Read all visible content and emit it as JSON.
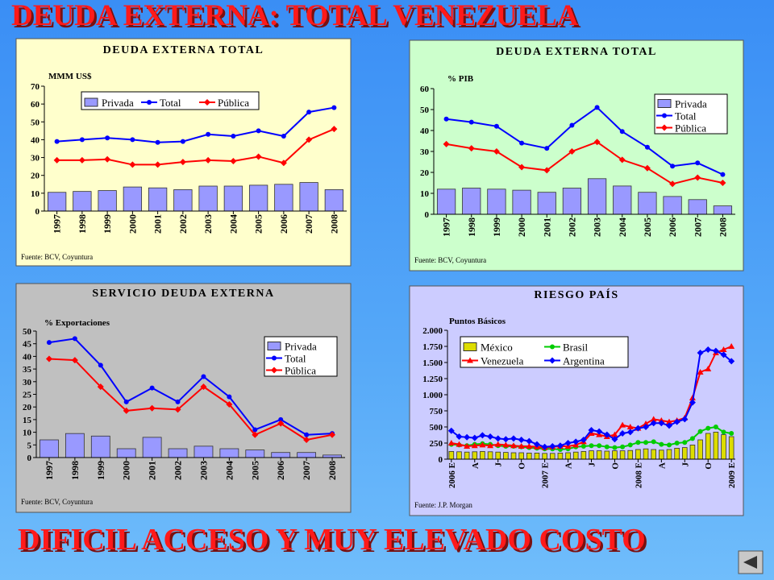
{
  "slide": {
    "title": "DEUDA EXTERNA: TOTAL VENEZUELA",
    "footer": "DIFICIL ACCESO Y MUY ELEVADO COSTO"
  },
  "chart_data": [
    {
      "type": "bar_line",
      "title": "DEUDA EXTERNA TOTAL",
      "y_label": "MMM US$",
      "source": "Fuente: BCV, Coyuntura",
      "legend": "top",
      "background": "#ffffcc",
      "categories": [
        "1997",
        "1998",
        "1999",
        "2000",
        "2001",
        "2002",
        "2003",
        "2004",
        "2005",
        "2006",
        "2007",
        "2008"
      ],
      "ylim": [
        0,
        70
      ],
      "yticks": [
        0,
        10,
        20,
        30,
        40,
        50,
        60,
        70
      ],
      "series": [
        {
          "name": "Privada",
          "type": "bar",
          "color": "#9999ff",
          "values": [
            10.5,
            11,
            11.5,
            13.5,
            13,
            12,
            14,
            14,
            14.5,
            15,
            16,
            12
          ]
        },
        {
          "name": "Total",
          "type": "line",
          "color": "#0000ff",
          "values": [
            39,
            40,
            41,
            40,
            38.5,
            39,
            43,
            42,
            45,
            42,
            55.5,
            58
          ]
        },
        {
          "name": "Pública",
          "type": "line",
          "color": "#ff0000",
          "values": [
            28.5,
            28.5,
            29,
            26,
            26,
            27.5,
            28.5,
            28,
            30.5,
            27,
            40,
            46
          ]
        }
      ]
    },
    {
      "type": "bar_line",
      "title": "DEUDA EXTERNA TOTAL",
      "y_label": "% PIB",
      "source": "Fuente: BCV, Coyuntura",
      "legend": "right",
      "background": "#ccffcc",
      "categories": [
        "1997",
        "1998",
        "1999",
        "2000",
        "2001",
        "2002",
        "2003",
        "2004",
        "2005",
        "2006",
        "2007",
        "2008"
      ],
      "ylim": [
        0,
        60
      ],
      "yticks": [
        0,
        10,
        20,
        30,
        40,
        50,
        60
      ],
      "series": [
        {
          "name": "Privada",
          "type": "bar",
          "color": "#9999ff",
          "values": [
            12,
            12.5,
            12,
            11.5,
            10.5,
            12.5,
            17,
            13.5,
            10.5,
            8.5,
            7,
            4
          ]
        },
        {
          "name": "Total",
          "type": "line",
          "color": "#0000ff",
          "values": [
            45.5,
            44,
            42,
            34,
            31.5,
            42.5,
            51,
            39.5,
            32,
            23,
            24.5,
            19
          ]
        },
        {
          "name": "Pública",
          "type": "line",
          "color": "#ff0000",
          "values": [
            33.5,
            31.5,
            30,
            22.5,
            21,
            30,
            34.5,
            26,
            22,
            14.5,
            17.5,
            15
          ]
        }
      ]
    },
    {
      "type": "bar_line",
      "title": "SERVICIO DEUDA EXTERNA",
      "y_label": "% Exportaciones",
      "source": "Fuente: BCV, Coyuntura",
      "legend": "right",
      "background": "#c0c0c0",
      "categories": [
        "1997",
        "1998",
        "1999",
        "2000",
        "2001",
        "2002",
        "2003",
        "2004",
        "2005",
        "2006",
        "2007",
        "2008"
      ],
      "ylim": [
        0,
        50
      ],
      "yticks": [
        0,
        5,
        10,
        15,
        20,
        25,
        30,
        35,
        40,
        45,
        50
      ],
      "series": [
        {
          "name": "Privada",
          "type": "bar",
          "color": "#9999ff",
          "values": [
            7,
            9.5,
            8.5,
            3.5,
            8,
            3.5,
            4.5,
            3.5,
            3,
            2,
            2,
            1
          ]
        },
        {
          "name": "Total",
          "type": "line",
          "color": "#0000ff",
          "values": [
            45.5,
            47,
            36.5,
            22,
            27.5,
            22,
            32,
            24,
            11,
            15,
            9,
            9.5
          ]
        },
        {
          "name": "Pública",
          "type": "line",
          "color": "#ff0000",
          "values": [
            39,
            38.5,
            28,
            18.5,
            19.5,
            19,
            28,
            21,
            9,
            13.5,
            7,
            9
          ]
        }
      ]
    },
    {
      "type": "bar_line",
      "title": "RIESGO PAÍS",
      "y_label": "Puntos Básicos",
      "source": "Fuente: J.P. Morgan",
      "legend": "top-left",
      "background": "#ccccff",
      "categories": [
        "2006 E",
        null,
        null,
        "A",
        null,
        null,
        "J",
        null,
        null,
        "O",
        null,
        null,
        "2007 E",
        null,
        null,
        "A",
        null,
        null,
        "J",
        null,
        null,
        "O",
        null,
        null,
        "2008 E",
        null,
        null,
        "A",
        null,
        null,
        "J",
        null,
        null,
        "O",
        null,
        null,
        "2009 E"
      ],
      "ylim": [
        0,
        2000
      ],
      "yticks": [
        0,
        250,
        500,
        750,
        {
          "value": 1000,
          "label": "1.000"
        },
        {
          "value": 1250,
          "label": "1.250"
        },
        {
          "value": 1500,
          "label": "1.500"
        },
        {
          "value": 1750,
          "label": "1.750"
        },
        {
          "value": 2000,
          "label": "2.000"
        }
      ],
      "series": [
        {
          "name": "México",
          "type": "bar",
          "color": "#dddd00",
          "values": [
            120,
            115,
            110,
            115,
            120,
            115,
            110,
            105,
            100,
            100,
            95,
            95,
            90,
            90,
            95,
            100,
            110,
            120,
            130,
            130,
            125,
            130,
            130,
            135,
            150,
            160,
            150,
            140,
            150,
            170,
            180,
            220,
            300,
            400,
            420,
            380,
            350
          ]
        },
        {
          "name": "Brasil",
          "type": "line",
          "color": "#00cc00",
          "values": [
            230,
            220,
            210,
            230,
            240,
            230,
            210,
            200,
            200,
            190,
            180,
            170,
            160,
            160,
            150,
            160,
            190,
            200,
            210,
            210,
            190,
            180,
            190,
            220,
            260,
            260,
            270,
            230,
            220,
            250,
            260,
            320,
            430,
            480,
            500,
            420,
            400
          ]
        },
        {
          "name": "Venezuela",
          "type": "line",
          "color": "#ff0000",
          "values": [
            250,
            230,
            200,
            210,
            220,
            210,
            230,
            220,
            210,
            200,
            200,
            190,
            180,
            190,
            200,
            200,
            220,
            270,
            400,
            380,
            350,
            380,
            530,
            500,
            480,
            550,
            620,
            600,
            580,
            600,
            640,
            950,
            1350,
            1400,
            1650,
            1700,
            1750
          ]
        },
        {
          "name": "Argentina",
          "type": "line",
          "color": "#0000ff",
          "values": [
            440,
            350,
            340,
            330,
            370,
            350,
            320,
            310,
            320,
            300,
            280,
            230,
            190,
            200,
            210,
            250,
            270,
            300,
            450,
            430,
            380,
            310,
            400,
            420,
            480,
            500,
            560,
            560,
            520,
            580,
            620,
            880,
            1650,
            1700,
            1680,
            1620,
            1520
          ]
        }
      ]
    }
  ]
}
